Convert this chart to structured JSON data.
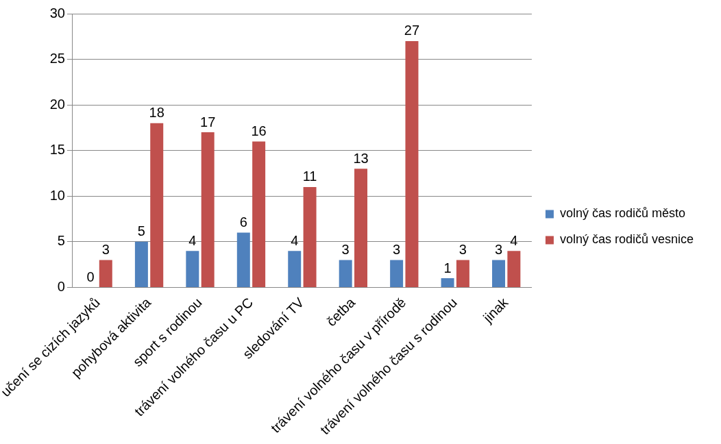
{
  "chart_data": {
    "type": "bar",
    "categories": [
      "učení se cizích jazyků",
      "pohybová aktivita",
      "sport s rodinou",
      "trávení volného času u PC",
      "sledování TV",
      "četba",
      "trávení volného času v přírodě",
      "trávení volného času s rodinou",
      "jinak"
    ],
    "series": [
      {
        "name": "volný čas rodičů město",
        "color": "#4f81bd",
        "values": [
          0,
          5,
          4,
          6,
          4,
          3,
          3,
          1,
          3
        ]
      },
      {
        "name": "volný čas rodičů vesnice",
        "color": "#c0504d",
        "values": [
          3,
          18,
          17,
          16,
          11,
          13,
          27,
          3,
          4
        ]
      }
    ],
    "ylim": [
      0,
      30
    ],
    "yticks": [
      0,
      5,
      10,
      15,
      20,
      25,
      30
    ],
    "grid": "y",
    "legend": "right",
    "data_labels": true
  }
}
